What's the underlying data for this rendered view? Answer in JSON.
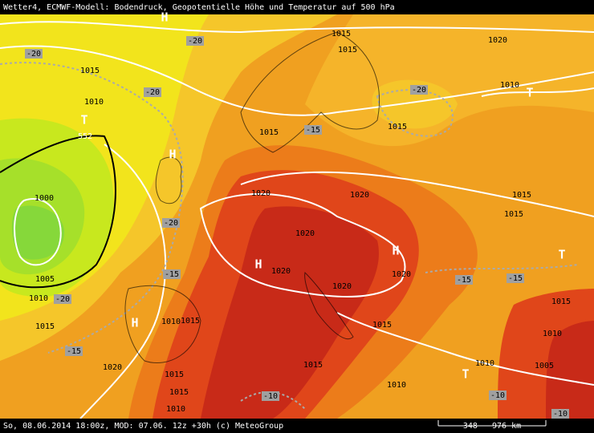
{
  "header": {
    "title": "Wetter4, ECMWF-Modell: Bodendruck, Geopotentielle Höhe und Temperatur auf 500 hPa"
  },
  "footer": {
    "run": "So, 08.06.2014 18:00z, MOD: 07.06. 12z +30h (c) MeteoGroup",
    "scale": "348 - 976 km"
  },
  "isobar_labels": [
    "1015",
    "1020",
    "1015",
    "1015",
    "1010",
    "1010",
    "1015",
    "1015",
    "1020",
    "1020",
    "1015",
    "1015",
    "1000",
    "1020",
    "1020",
    "1020",
    "1020",
    "1005",
    "1010",
    "1015",
    "1010",
    "1015",
    "1015",
    "1015",
    "1010",
    "1015",
    "1020",
    "1010",
    "1005",
    "1015",
    "1010",
    "1015",
    "1010"
  ],
  "temperature_labels": [
    "-20",
    "-20",
    "-20",
    "-20",
    "-15",
    "-20",
    "-15",
    "-20",
    "-15",
    "-15",
    "-15",
    "-10",
    "-10",
    "-10"
  ],
  "geopotential_labels": [
    "552"
  ],
  "pressure_centers": [
    "H",
    "T",
    "H",
    "H",
    "H",
    "H",
    "T",
    "T",
    "T"
  ]
}
